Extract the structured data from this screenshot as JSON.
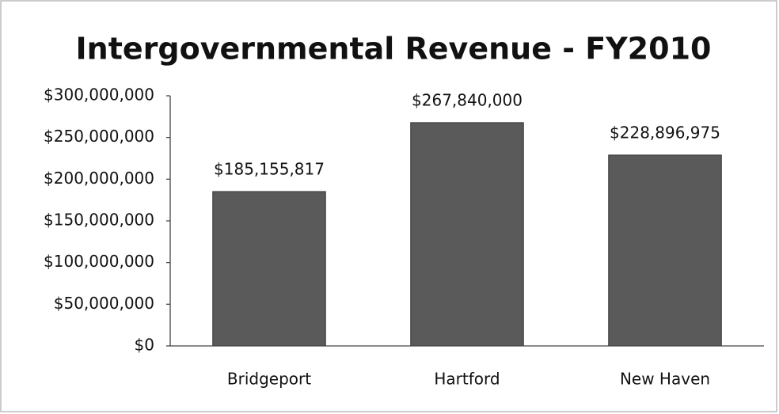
{
  "chart_data": {
    "type": "bar",
    "title": "Intergovernmental Revenue - FY2010",
    "categories": [
      "Bridgeport",
      "Hartford",
      "New Haven"
    ],
    "values": [
      185155817,
      267840000,
      228896975
    ],
    "value_labels": [
      "$185,155,817",
      "$267,840,000",
      "$228,896,975"
    ],
    "color": "#5a5a5a",
    "ylim": [
      0,
      300000000
    ],
    "yticks": [
      {
        "value": 0,
        "label": "$0"
      },
      {
        "value": 50000000,
        "label": "$50,000,000"
      },
      {
        "value": 100000000,
        "label": "$100,000,000"
      },
      {
        "value": 150000000,
        "label": "$150,000,000"
      },
      {
        "value": 200000000,
        "label": "$200,000,000"
      },
      {
        "value": 250000000,
        "label": "$250,000,000"
      },
      {
        "value": 300000000,
        "label": "$300,000,000"
      }
    ],
    "grid": false
  }
}
